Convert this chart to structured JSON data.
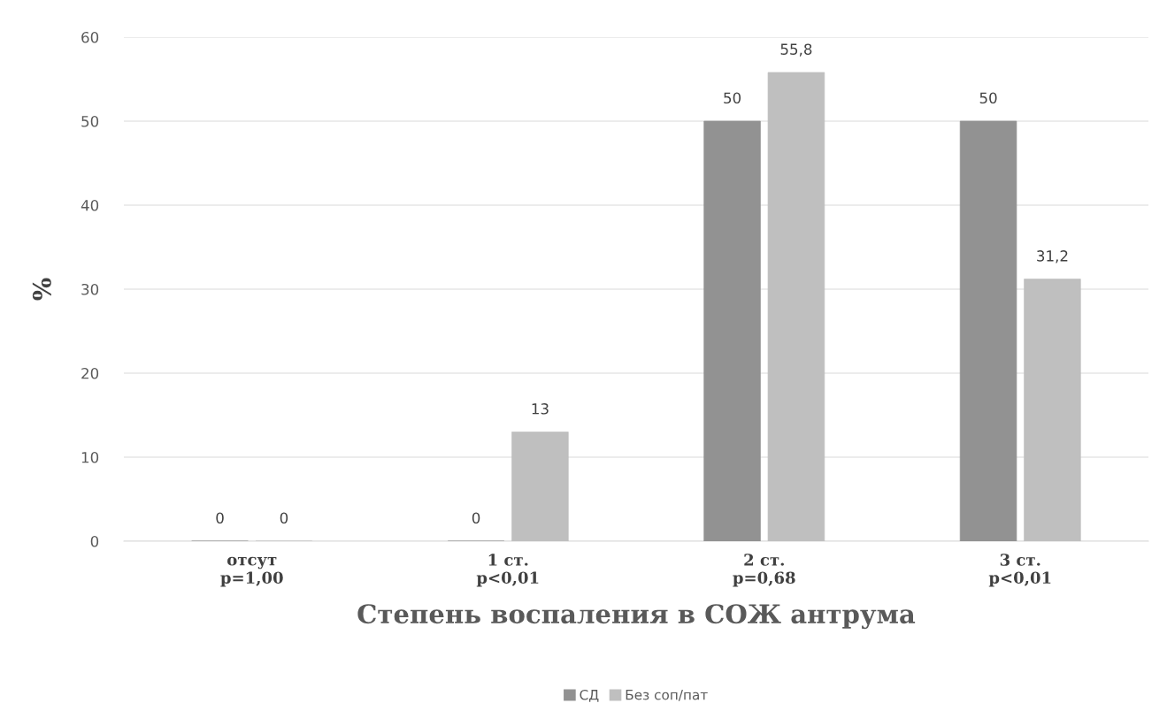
{
  "chart_data": {
    "type": "bar",
    "categories": [
      "отсут\np=1,00",
      "1 ст.\np<0,01",
      "2 ст.\np=0,68",
      "3 ст.\np<0,01"
    ],
    "series": [
      {
        "name": "СД",
        "color": "#929292",
        "values": [
          0,
          0,
          50,
          50
        ],
        "value_labels": [
          "0",
          "0",
          "50",
          "50"
        ]
      },
      {
        "name": "Без соп/пат",
        "color": "#bfbfbf",
        "values": [
          0,
          13,
          55.8,
          31.2
        ],
        "value_labels": [
          "0",
          "13",
          "55,8",
          "31,2"
        ]
      }
    ],
    "xlabel": "Степень воспаления в СОЖ антрума",
    "ylabel": "%",
    "ylim": [
      0,
      60
    ],
    "yticks": [
      0,
      10,
      20,
      30,
      40,
      50,
      60
    ],
    "grid": "y",
    "legend": "bottom"
  }
}
